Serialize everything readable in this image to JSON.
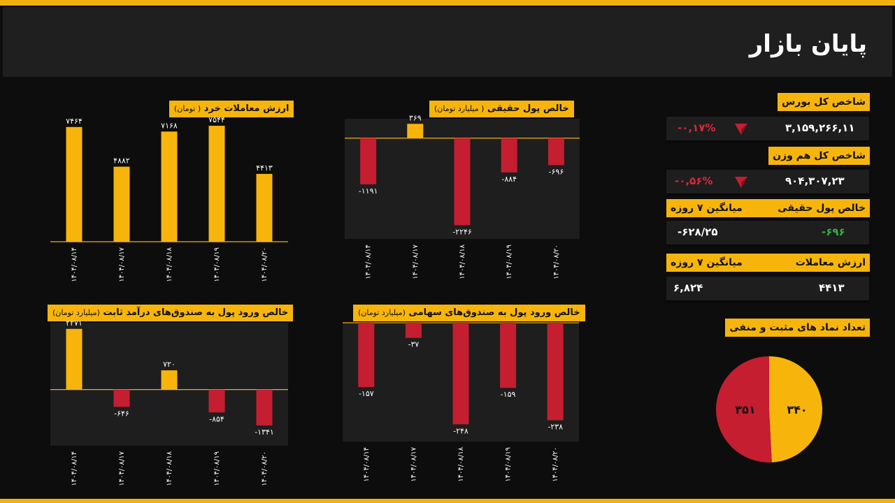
{
  "header": {
    "title": "پایان بازار"
  },
  "indices": {
    "total": {
      "label": "شاخص کل بورس",
      "value": "۳,۱۵۹,۲۶۶,۱۱",
      "change": "-۰,۱۷%",
      "icon": "down-arrow-icon"
    },
    "equal": {
      "label": "شاخص کل هم وزن",
      "value": "۹۰۴,۳۰۷,۲۳",
      "change": "-۰,۵۶%",
      "icon": "down-arrow-icon"
    },
    "flow": {
      "label": "خالص پول حقیقی",
      "avg_label": "میانگین ۷ روزه",
      "value": "-۶۹۶",
      "avg": "-۶۲۸/۲۵"
    },
    "volume": {
      "label": "ارزش معاملات",
      "avg_label": "میانگین ۷ روزه",
      "value": "۴۴۱۳",
      "avg": "۶,۸۲۴"
    }
  },
  "colors": {
    "positive": "#f7b50c",
    "negative": "#c41e30",
    "accent": "#f2b010"
  },
  "pie": {
    "title": "تعداد نماد های مثبت و منفی",
    "positive": 340,
    "negative": 351,
    "positive_label": "۳۴۰",
    "negative_label": "۳۵۱"
  },
  "chart_data": [
    {
      "id": "retail",
      "type": "bar",
      "title": "ارزش معاملات خرد",
      "unit": "( تومان)",
      "categories": [
        "۱۴۰۴/۰۸/۱۴",
        "۱۴۰۴/۰۸/۱۷",
        "۱۴۰۴/۰۸/۱۸",
        "۱۴۰۴/۰۸/۱۹",
        "۱۴۰۴/۰۸/۲۰"
      ],
      "values": [
        7464,
        4882,
        7168,
        7544,
        4413
      ],
      "value_labels": [
        "۷۴۶۴",
        "۴۸۸۲",
        "۷۱۶۸",
        "۷۵۴۴",
        "۴۴۱۳"
      ],
      "ylim": [
        0,
        8000
      ]
    },
    {
      "id": "realmoney",
      "type": "bar",
      "title": "خالص پول حقیقی",
      "unit": "( میلیارد تومان)",
      "categories": [
        "۱۴۰۴/۰۸/۱۴",
        "۱۴۰۴/۰۸/۱۷",
        "۱۴۰۴/۰۸/۱۸",
        "۱۴۰۴/۰۸/۱۹",
        "۱۴۰۴/۰۸/۲۰"
      ],
      "values": [
        -1191,
        369,
        -2246,
        -884,
        -696
      ],
      "value_labels": [
        "-۱۱۹۱",
        "۳۶۹",
        "-۲۲۴۶",
        "-۸۸۴",
        "-۶۹۶"
      ],
      "ylim": [
        -2600,
        500
      ]
    },
    {
      "id": "fixed",
      "type": "bar",
      "title": "خالص ورود پول به صندوق‌های درآمد ثابت",
      "unit": "(میلیارد تومان)",
      "categories": [
        "۱۴۰۴/۰۸/۱۴",
        "۱۴۰۴/۰۸/۱۷",
        "۱۴۰۴/۰۸/۱۸",
        "۱۴۰۴/۰۸/۱۹",
        "۱۴۰۴/۰۸/۲۰"
      ],
      "values": [
        2271,
        -646,
        720,
        -854,
        -1341
      ],
      "value_labels": [
        "۲۲۷۱",
        "-۶۴۶",
        "۷۲۰",
        "-۸۵۴",
        "-۱۳۴۱"
      ],
      "ylim": [
        -2100,
        2500
      ]
    },
    {
      "id": "equity",
      "type": "bar",
      "title": "خالص ورود پول به صندوق‌های سهامی",
      "unit": "(میلیارد تومان)",
      "categories": [
        "۱۴۰۴/۰۸/۱۴",
        "۱۴۰۴/۰۸/۱۷",
        "۱۴۰۴/۰۸/۱۸",
        "۱۴۰۴/۰۸/۱۹",
        "۱۴۰۴/۰۸/۲۰"
      ],
      "values": [
        -157,
        -37,
        -248,
        -159,
        -238
      ],
      "value_labels": [
        "-۱۵۷",
        "-۳۷",
        "-۲۴۸",
        "-۱۵۹",
        "-۲۳۸"
      ],
      "ylim": [
        -290,
        0
      ]
    }
  ]
}
